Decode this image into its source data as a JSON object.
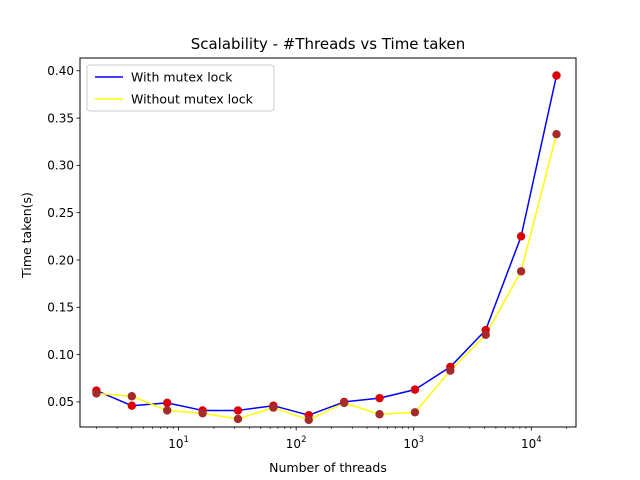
{
  "chart_data": {
    "type": "line",
    "title": "Scalability - #Threads vs Time taken",
    "xlabel": "Number of threads",
    "ylabel": "Time taken(s)",
    "xscale": "log",
    "xlim": [
      1.45,
      24000
    ],
    "ylim": [
      0.0235,
      0.4135
    ],
    "yticks": [
      0.05,
      0.1,
      0.15,
      0.2,
      0.25,
      0.3,
      0.35,
      0.4
    ],
    "ytick_labels": [
      "0.05",
      "0.10",
      "0.15",
      "0.20",
      "0.25",
      "0.30",
      "0.35",
      "0.40"
    ],
    "xticks": [
      {
        "base": "10",
        "exp": "1",
        "value": 10
      },
      {
        "base": "10",
        "exp": "2",
        "value": 100
      },
      {
        "base": "10",
        "exp": "3",
        "value": 1000
      },
      {
        "base": "10",
        "exp": "4",
        "value": 10000
      }
    ],
    "grid": false,
    "legend_position": "top-left",
    "x": [
      2,
      4,
      8,
      16,
      32,
      64,
      128,
      256,
      512,
      1024,
      2048,
      4096,
      8192,
      16384
    ],
    "series": [
      {
        "name": "With mutex lock",
        "color": "#0000ff",
        "marker_color": "#dd0000",
        "values": [
          0.062,
          0.046,
          0.049,
          0.041,
          0.041,
          0.046,
          0.036,
          0.05,
          0.054,
          0.063,
          0.087,
          0.126,
          0.225,
          0.395
        ]
      },
      {
        "name": "Without mutex lock",
        "color": "#ffff00",
        "marker_color": "#a52a2a",
        "values": [
          0.059,
          0.056,
          0.041,
          0.038,
          0.032,
          0.044,
          0.031,
          0.049,
          0.037,
          0.039,
          0.083,
          0.121,
          0.188,
          0.333
        ]
      }
    ]
  }
}
